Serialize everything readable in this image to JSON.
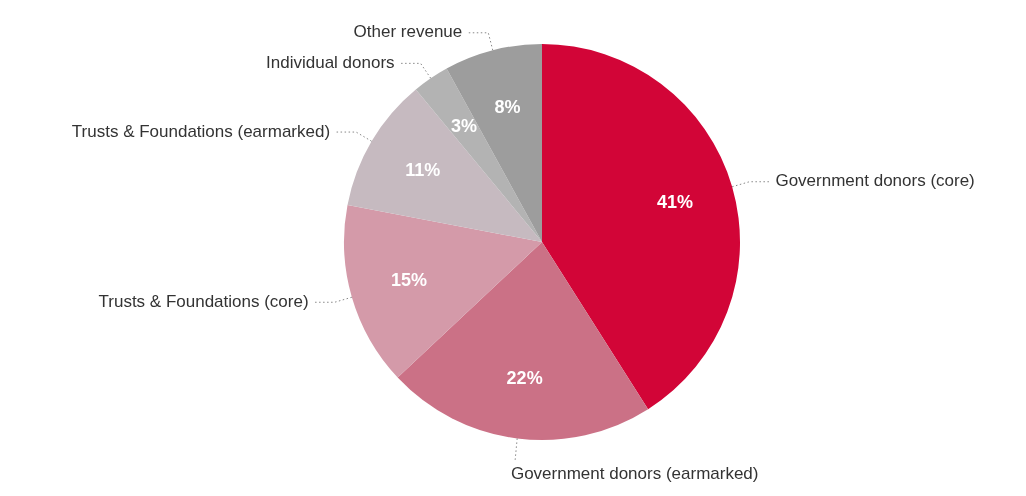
{
  "chart_data": {
    "type": "pie",
    "categories": [
      "Government donors (core)",
      "Government donors (earmarked)",
      "Trusts & Foundations (core)",
      "Trusts & Foundations (earmarked)",
      "Individual donors",
      "Other revenue"
    ],
    "values": [
      41,
      22,
      15,
      11,
      3,
      8
    ],
    "value_labels": [
      "41%",
      "22%",
      "15%",
      "11%",
      "3%",
      "8%"
    ],
    "colors": [
      "#d20537",
      "#cb7186",
      "#d49aa9",
      "#c6bac0",
      "#b3b3b3",
      "#9d9d9d"
    ]
  }
}
